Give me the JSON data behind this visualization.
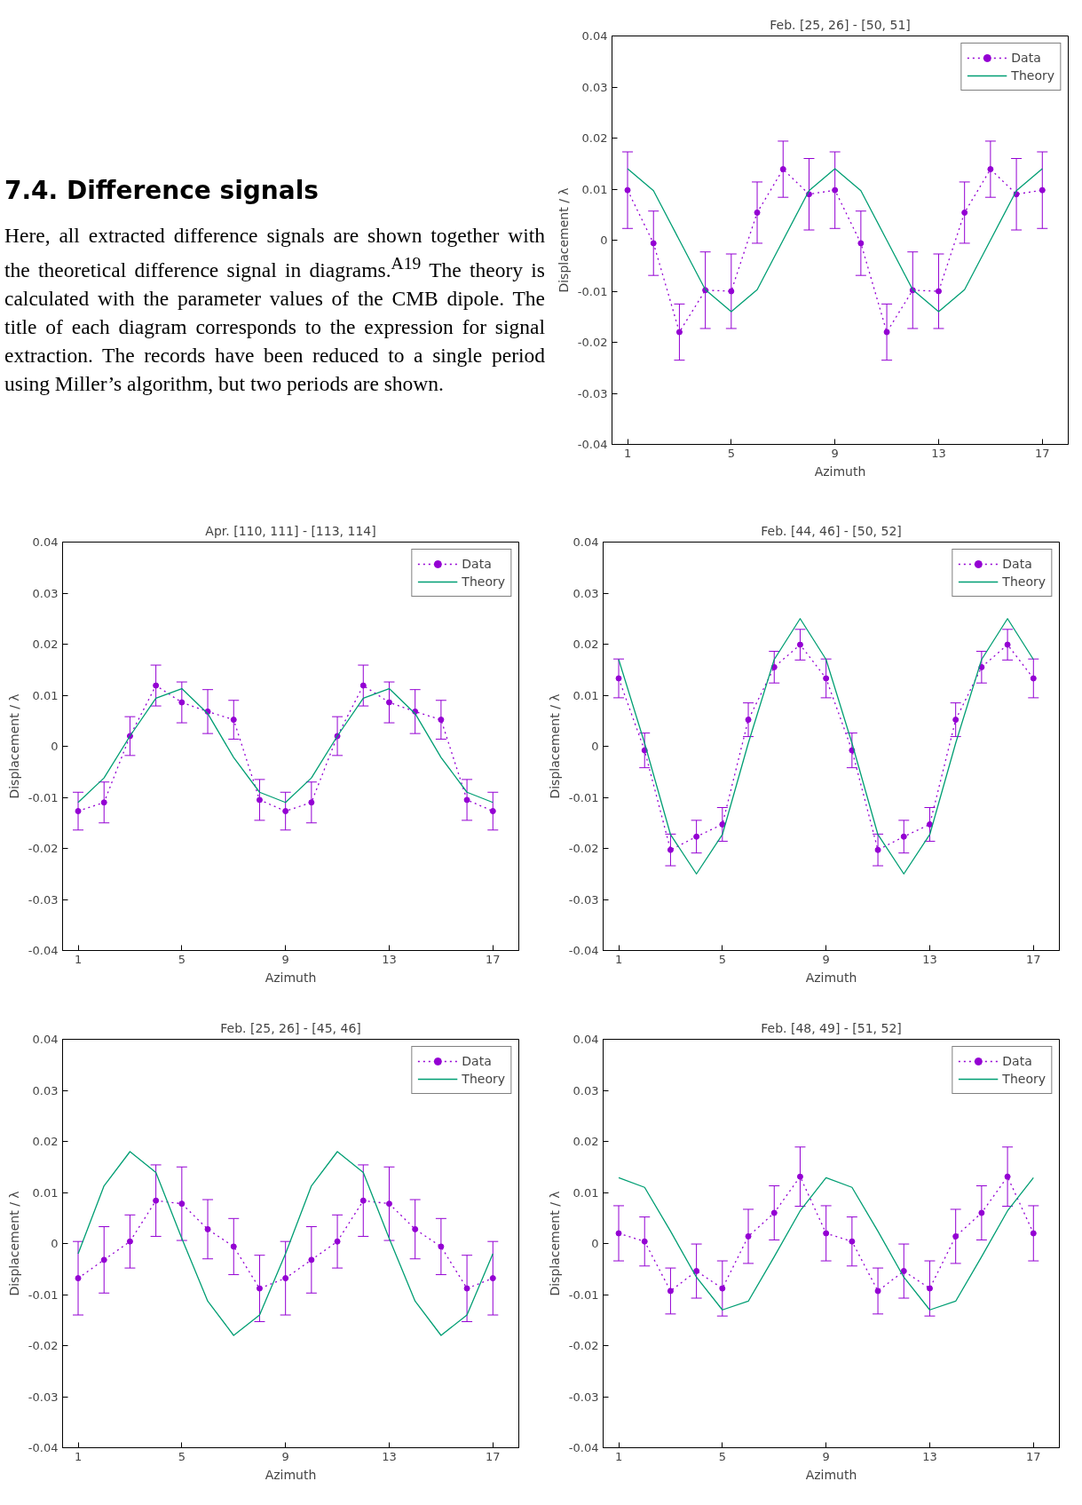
{
  "chart_data": [
    {
      "type": "other",
      "title": "7.4. Difference signals",
      "annotations": [
        "Here, all extracted difference signals are shown together with the theoretical difference signal in diagrams.$^{A19}$ The theory is calculated with the parameter values of the CMB dipole. The title of each diagram corresponds to the expression for signal extraction. The records have been reduced to a single period using Miller’s algorithm, but two periods are shown."
      ]
    },
    {
      "type": "line",
      "title": "Feb. [25, 26] - [50, 51]",
      "xlabel": "Azimuth",
      "ylabel": "Displacement / λ",
      "x": [
        1,
        2,
        3,
        4,
        5,
        6,
        7,
        8,
        9,
        10,
        11,
        12,
        13,
        14,
        15,
        16,
        17
      ],
      "xlim": [
        0.4,
        18
      ],
      "xticks": [
        1,
        5,
        9,
        13,
        17
      ],
      "ylim": [
        -0.04,
        0.04
      ],
      "yticks": [
        -0.04,
        -0.03,
        -0.02,
        -0.01,
        0,
        0.01,
        0.02,
        0.03,
        0.04
      ],
      "legend": "top right",
      "series": [
        {
          "name": "Data",
          "color": "#9400d3",
          "marker": "circle",
          "line_style": "dotted",
          "values": [
            0.0098,
            -0.0006,
            -0.018,
            -0.0098,
            -0.01,
            0.0054,
            0.0139,
            0.009,
            0.0098,
            -0.0006,
            -0.018,
            -0.0098,
            -0.01,
            0.0054,
            0.0139,
            0.009,
            0.0098
          ],
          "errors": [
            0.0075,
            0.0063,
            0.0055,
            0.0075,
            0.0073,
            0.006,
            0.0055,
            0.007,
            0.0075,
            0.0063,
            0.0055,
            0.0075,
            0.0073,
            0.006,
            0.0055,
            0.007,
            0.0075
          ]
        },
        {
          "name": "Theory",
          "color": "#009e73",
          "marker": "none",
          "line_style": "solid",
          "values": [
            0.014,
            0.0097,
            0,
            -0.0097,
            -0.014,
            -0.0097,
            0,
            0.0097,
            0.014,
            0.0097,
            0,
            -0.0097,
            -0.014,
            -0.0097,
            0,
            0.0097,
            0.014
          ]
        }
      ]
    },
    {
      "type": "line",
      "title": "Apr. [110, 111] - [113, 114]",
      "xlabel": "Azimuth",
      "ylabel": "Displacement / λ",
      "x": [
        1,
        2,
        3,
        4,
        5,
        6,
        7,
        8,
        9,
        10,
        11,
        12,
        13,
        14,
        15,
        16,
        17
      ],
      "xlim": [
        0.4,
        18
      ],
      "xticks": [
        1,
        5,
        9,
        13,
        17
      ],
      "ylim": [
        -0.04,
        0.04
      ],
      "yticks": [
        -0.04,
        -0.03,
        -0.02,
        -0.01,
        0,
        0.01,
        0.02,
        0.03,
        0.04
      ],
      "legend": "top right",
      "series": [
        {
          "name": "Data",
          "color": "#9400d3",
          "marker": "circle",
          "line_style": "dotted",
          "values": [
            -0.0127,
            -0.011,
            0.002,
            0.0119,
            0.0086,
            0.0068,
            0.0052,
            -0.0105,
            -0.0127,
            -0.011,
            0.002,
            0.0119,
            0.0086,
            0.0068,
            0.0052,
            -0.0105,
            -0.0127
          ],
          "errors": [
            0.0037,
            0.004,
            0.0038,
            0.004,
            0.004,
            0.0043,
            0.0038,
            0.004,
            0.0037,
            0.004,
            0.0038,
            0.004,
            0.004,
            0.0043,
            0.0038,
            0.004,
            0.0037
          ]
        },
        {
          "name": "Theory",
          "color": "#009e73",
          "marker": "none",
          "line_style": "solid",
          "values": [
            -0.011,
            -0.0062,
            0.002,
            0.0094,
            0.0113,
            0.0064,
            -0.0022,
            -0.009,
            -0.011,
            -0.0062,
            0.002,
            0.0094,
            0.0113,
            0.0064,
            -0.0022,
            -0.009,
            -0.011
          ]
        }
      ]
    },
    {
      "type": "line",
      "title": "Feb. [44, 46] - [50, 52]",
      "xlabel": "Azimuth",
      "ylabel": "Displacement / λ",
      "x": [
        1,
        2,
        3,
        4,
        5,
        6,
        7,
        8,
        9,
        10,
        11,
        12,
        13,
        14,
        15,
        16,
        17
      ],
      "xlim": [
        0.4,
        18
      ],
      "xticks": [
        1,
        5,
        9,
        13,
        17
      ],
      "ylim": [
        -0.04,
        0.04
      ],
      "yticks": [
        -0.04,
        -0.03,
        -0.02,
        -0.01,
        0,
        0.01,
        0.02,
        0.03,
        0.04
      ],
      "legend": "top right",
      "series": [
        {
          "name": "Data",
          "color": "#9400d3",
          "marker": "circle",
          "line_style": "dotted",
          "values": [
            0.0133,
            -0.0008,
            -0.0203,
            -0.0177,
            -0.0153,
            0.0052,
            0.0155,
            0.0199,
            0.0133,
            -0.0008,
            -0.0203,
            -0.0177,
            -0.0153,
            0.0052,
            0.0155,
            0.0199,
            0.0133
          ],
          "errors": [
            0.0038,
            0.0034,
            0.0031,
            0.0032,
            0.0033,
            0.0033,
            0.0031,
            0.003,
            0.0038,
            0.0034,
            0.0031,
            0.0032,
            0.0033,
            0.0033,
            0.0031,
            0.003,
            0.0038
          ]
        },
        {
          "name": "Theory",
          "color": "#009e73",
          "marker": "none",
          "line_style": "solid",
          "values": [
            0.017,
            0.0006,
            -0.0173,
            -0.025,
            -0.0173,
            0.0006,
            0.017,
            0.025,
            0.017,
            0.0006,
            -0.0173,
            -0.025,
            -0.0173,
            0.0006,
            0.017,
            0.025,
            0.017
          ]
        }
      ]
    },
    {
      "type": "line",
      "title": "Feb. [25, 26] - [45, 46]",
      "xlabel": "Azimuth",
      "ylabel": "Displacement / λ",
      "x": [
        1,
        2,
        3,
        4,
        5,
        6,
        7,
        8,
        9,
        10,
        11,
        12,
        13,
        14,
        15,
        16,
        17
      ],
      "xlim": [
        0.4,
        18
      ],
      "xticks": [
        1,
        5,
        9,
        13,
        17
      ],
      "ylim": [
        -0.04,
        0.04
      ],
      "yticks": [
        -0.04,
        -0.03,
        -0.02,
        -0.01,
        0,
        0.01,
        0.02,
        0.03,
        0.04
      ],
      "legend": "top right",
      "series": [
        {
          "name": "Data",
          "color": "#9400d3",
          "marker": "circle",
          "line_style": "dotted",
          "values": [
            -0.0068,
            -0.0032,
            0.0004,
            0.0084,
            0.0078,
            0.0028,
            -0.0006,
            -0.0088,
            -0.0068,
            -0.0032,
            0.0004,
            0.0084,
            0.0078,
            0.0028,
            -0.0006,
            -0.0088,
            -0.0068
          ],
          "errors": [
            0.0072,
            0.0065,
            0.0052,
            0.007,
            0.0072,
            0.0058,
            0.0055,
            0.0065,
            0.0072,
            0.0065,
            0.0052,
            0.007,
            0.0072,
            0.0058,
            0.0055,
            0.0065,
            0.0072
          ]
        },
        {
          "name": "Theory",
          "color": "#009e73",
          "marker": "none",
          "line_style": "solid",
          "values": [
            -0.002,
            0.0113,
            0.018,
            0.0139,
            0.001,
            -0.0113,
            -0.018,
            -0.014,
            -0.002,
            0.0113,
            0.018,
            0.0139,
            0.001,
            -0.0113,
            -0.018,
            -0.014,
            -0.002
          ]
        }
      ]
    },
    {
      "type": "line",
      "title": "Feb. [48, 49] - [51, 52]",
      "xlabel": "Azimuth",
      "ylabel": "Displacement / λ",
      "x": [
        1,
        2,
        3,
        4,
        5,
        6,
        7,
        8,
        9,
        10,
        11,
        12,
        13,
        14,
        15,
        16,
        17
      ],
      "xlim": [
        0.4,
        18
      ],
      "xticks": [
        1,
        5,
        9,
        13,
        17
      ],
      "ylim": [
        -0.04,
        0.04
      ],
      "yticks": [
        -0.04,
        -0.03,
        -0.02,
        -0.01,
        0,
        0.01,
        0.02,
        0.03,
        0.04
      ],
      "legend": "top right",
      "series": [
        {
          "name": "Data",
          "color": "#9400d3",
          "marker": "circle",
          "line_style": "dotted",
          "values": [
            0.002,
            0.0004,
            -0.0093,
            -0.0054,
            -0.0088,
            0.0014,
            0.006,
            0.0131,
            0.002,
            0.0004,
            -0.0093,
            -0.0054,
            -0.0088,
            0.0014,
            0.006,
            0.0131,
            0.002
          ],
          "errors": [
            0.0054,
            0.0048,
            0.0045,
            0.0053,
            0.0054,
            0.0053,
            0.0053,
            0.0058,
            0.0054,
            0.0048,
            0.0045,
            0.0053,
            0.0054,
            0.0053,
            0.0053,
            0.0058,
            0.0054
          ]
        },
        {
          "name": "Theory",
          "color": "#009e73",
          "marker": "none",
          "line_style": "solid",
          "values": [
            0.0129,
            0.011,
            0.0024,
            -0.0066,
            -0.013,
            -0.0113,
            -0.0026,
            0.0064,
            0.0129,
            0.011,
            0.0024,
            -0.0066,
            -0.013,
            -0.0113,
            -0.0026,
            0.0064,
            0.0129
          ]
        }
      ]
    }
  ]
}
